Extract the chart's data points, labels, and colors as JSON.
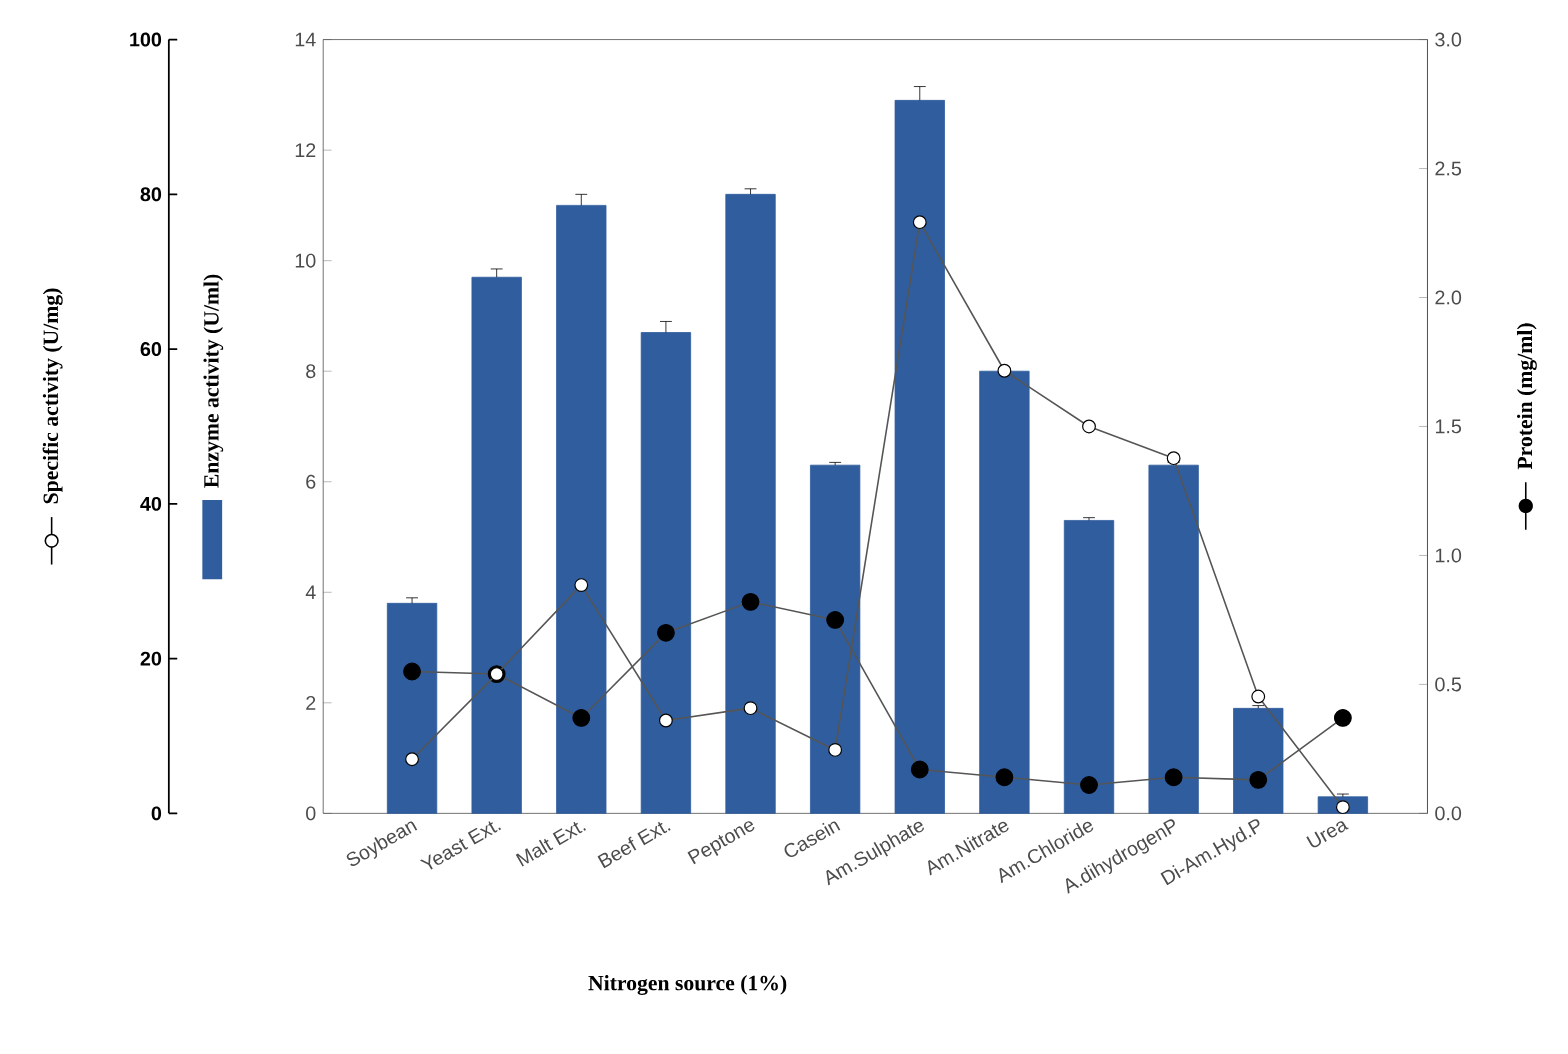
{
  "chart_data": {
    "type": "bar",
    "categories": [
      "Soybean",
      "Yeast Ext.",
      "Malt Ext.",
      "Beef Ext.",
      "Peptone",
      "Casein",
      "Am.Sulphate",
      "Am.Nitrate",
      "Am.Chloride",
      "A.dihydrogenP",
      "Di-Am.Hyd.P",
      "Urea"
    ],
    "xlabel": "Nitrogen source (1%)",
    "ylabel": "Enzyme activity (U/ml)",
    "y2label": "Protein (mg/ml)",
    "y3label": "Specific activity (U/mg)",
    "ylim": [
      0,
      14
    ],
    "yticks": [
      0,
      2,
      4,
      6,
      8,
      10,
      12,
      14
    ],
    "y2lim": [
      0,
      3
    ],
    "y2ticks": [
      {
        "value": 0,
        "label": "0.0"
      },
      0.5,
      {
        "value": 1,
        "label": "1.0"
      },
      1.5,
      {
        "value": 2,
        "label": "2.0"
      },
      2.5,
      {
        "value": 3,
        "label": "3.0"
      }
    ],
    "y3lim": [
      0,
      100
    ],
    "y3ticks": [
      0,
      20,
      40,
      60,
      80,
      100
    ],
    "grid": false,
    "series": [
      {
        "color": "#2f5d9e",
        "values": [
          3.8,
          9.7,
          11.0,
          8.7,
          11.2,
          6.3,
          12.9,
          8.0,
          5.3,
          6.3,
          1.9,
          0.3
        ],
        "errors": [
          0.1,
          0.15,
          0.2,
          0.2,
          0.1,
          0.05,
          0.25,
          0.05,
          0.05,
          0.05,
          0.05,
          0.05
        ]
      },
      {
        "type": "line",
        "axis": "y3",
        "marker": "circle",
        "color": "#ffffff",
        "values": [
          7,
          18,
          29.5,
          12,
          13.6,
          8.2,
          76.4,
          57.2,
          50,
          45.9,
          15.1,
          0.8
        ]
      },
      {
        "type": "line",
        "axis": "y2",
        "marker": "circle",
        "color": "#000000",
        "values": [
          0.55,
          0.54,
          0.37,
          0.7,
          0.82,
          0.75,
          0.17,
          0.14,
          0.11,
          0.14,
          0.13,
          0.37
        ]
      }
    ]
  }
}
